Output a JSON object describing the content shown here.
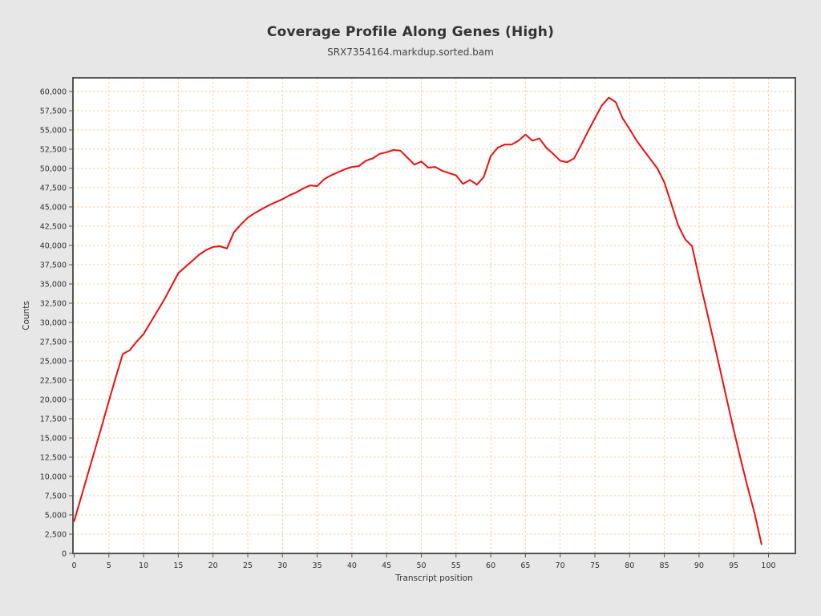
{
  "chart": {
    "title": "Coverage Profile Along Genes (High)",
    "subtitle": "SRX7354164.markdup.sorted.bam"
  },
  "chart_data": {
    "type": "line",
    "title": "Coverage Profile Along Genes (High)",
    "subtitle": "SRX7354164.markdup.sorted.bam",
    "xlabel": "Transcript position",
    "ylabel": "Counts",
    "xlim": [
      0,
      100
    ],
    "ylim": [
      0,
      60000
    ],
    "x_tick_step": 5,
    "y_tick_step": 2500,
    "grid": true,
    "legend_position": "none",
    "series": [
      {
        "name": "SRX7354164.markdup.sorted.bam",
        "x_start": 0,
        "x_step": 1,
        "values": [
          4200,
          7300,
          10400,
          13500,
          16600,
          19800,
          22900,
          25900,
          26400,
          27500,
          28500,
          30000,
          31500,
          33000,
          34700,
          36400,
          37200,
          38000,
          38800,
          39400,
          39800,
          39900,
          39600,
          41700,
          42700,
          43600,
          44200,
          44700,
          45200,
          45600,
          46000,
          46500,
          46900,
          47400,
          47800,
          47700,
          48600,
          49100,
          49500,
          49900,
          50200,
          50300,
          51000,
          51300,
          51900,
          52100,
          52400,
          52300,
          51400,
          50500,
          50900,
          50100,
          50200,
          49700,
          49400,
          49100,
          48000,
          48500,
          47900,
          48900,
          51600,
          52700,
          53100,
          53100,
          53600,
          54400,
          53600,
          53900,
          52700,
          51900,
          51000,
          50800,
          51300,
          53000,
          54800,
          56500,
          58200,
          59200,
          58600,
          56500,
          55100,
          53600,
          52400,
          51200,
          50000,
          48200,
          45400,
          42600,
          40800,
          39900,
          35800,
          31900,
          28000,
          24000,
          20000,
          16000,
          12200,
          8600,
          5200,
          1200
        ]
      }
    ],
    "colors": {
      "figure_background": "#e7e7e7",
      "plot_background": "#ffffff",
      "plot_border": "#545454",
      "gridline": "#f8cda6",
      "series_line": "#ee0e0e",
      "tick_text": "#2f2f2f",
      "title_text": "#333333",
      "subtitle_text": "#444444",
      "axis_label_text": "#333333",
      "tick_mark": "#555555"
    }
  }
}
